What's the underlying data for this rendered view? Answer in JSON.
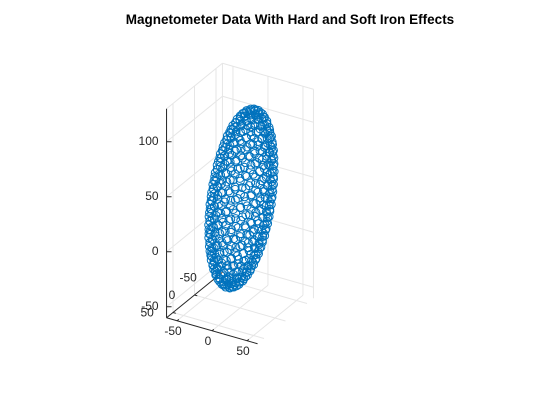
{
  "chart_data": {
    "type": "scatter3d",
    "title": "Magnetometer Data With Hard and Soft Iron Effects",
    "xlabel": "",
    "ylabel": "",
    "zlabel": "",
    "grid": true,
    "marker": "circle",
    "series_color": "#0072bd",
    "axis_color": "#262626",
    "grid_color": "#e6e6e6",
    "xlim": [
      -65,
      65
    ],
    "ylim": [
      -65,
      65
    ],
    "zlim": [
      -60,
      130
    ],
    "x_ticks": [
      -50,
      0,
      50
    ],
    "y_ticks": [
      -50,
      0,
      50
    ],
    "z_ticks": [
      -50,
      0,
      50,
      100
    ],
    "x_tick_labels": [
      "-50",
      "0",
      "50"
    ],
    "y_tick_labels": [
      "-50",
      "0",
      "50"
    ],
    "z_tick_labels": [
      "-50",
      "0",
      "50",
      "100"
    ],
    "ellipsoid": {
      "center": [
        2,
        0,
        40
      ],
      "radii": [
        25,
        60,
        78
      ],
      "tilt_deg": 28,
      "num_points": 500
    }
  }
}
